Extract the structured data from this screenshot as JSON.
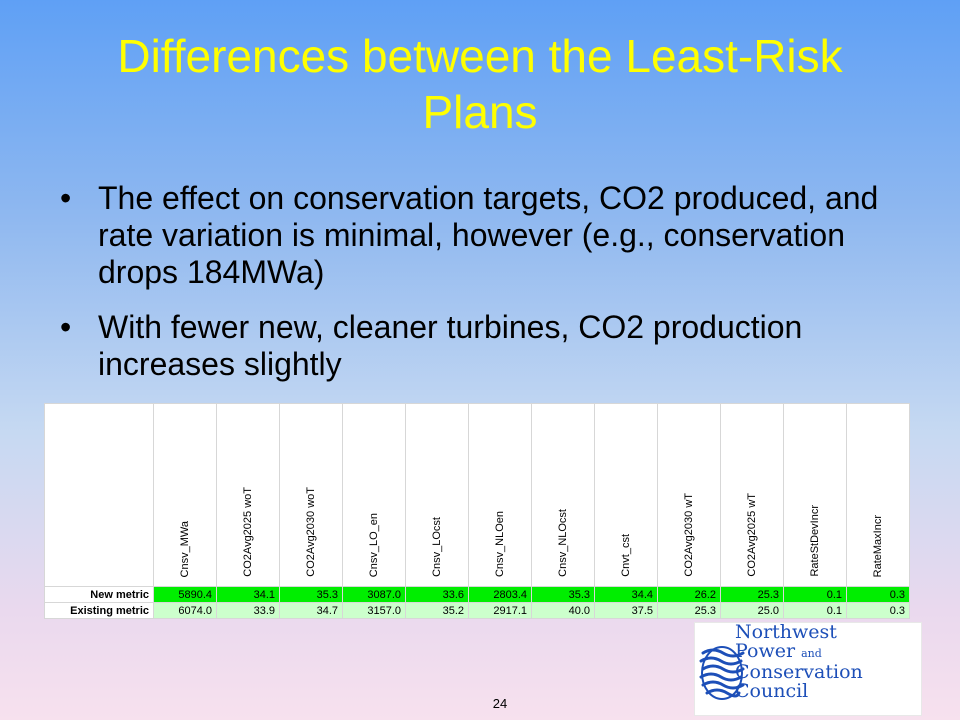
{
  "title": "Differences between the Least-Risk Plans",
  "bullets": [
    "The effect on conservation targets, CO2 produced, and rate variation is minimal, however (e.g., conservation drops 184MWa)",
    "With fewer new, cleaner turbines, CO2 production increases slightly"
  ],
  "table": {
    "columns": [
      "Cnsv_MWa",
      "CO2Avg2025 woT",
      "CO2Avg2030 woT",
      "Cnsv_LO_en",
      "Cnsv_LOcst",
      "Cnsv_NLOen",
      "Cnsv_NLOcst",
      "Cnvt_cst",
      "CO2Avg2030 wT",
      "CO2Avg2025 wT",
      "RateStDevIncr",
      "RateMaxIncr"
    ],
    "rows": [
      {
        "label": "New metric",
        "values": [
          "5890.4",
          "34.1",
          "35.3",
          "3087.0",
          "33.6",
          "2803.4",
          "35.3",
          "34.4",
          "26.2",
          "25.3",
          "0.1",
          "0.3"
        ]
      },
      {
        "label": "Existing metric",
        "values": [
          "6074.0",
          "33.9",
          "34.7",
          "3157.0",
          "35.2",
          "2917.1",
          "40.0",
          "37.5",
          "25.3",
          "25.0",
          "0.1",
          "0.3"
        ]
      }
    ]
  },
  "logo": {
    "line1": "Northwest",
    "line2a": "Power",
    "line2b": "and",
    "line3": "Conservation",
    "line4": "Council"
  },
  "page_number": "24",
  "colors": {
    "title": "#ffff00",
    "new_metric_fill": "#00ee00",
    "existing_metric_fill": "#ccffcc",
    "logo": "#1d4fb8"
  }
}
